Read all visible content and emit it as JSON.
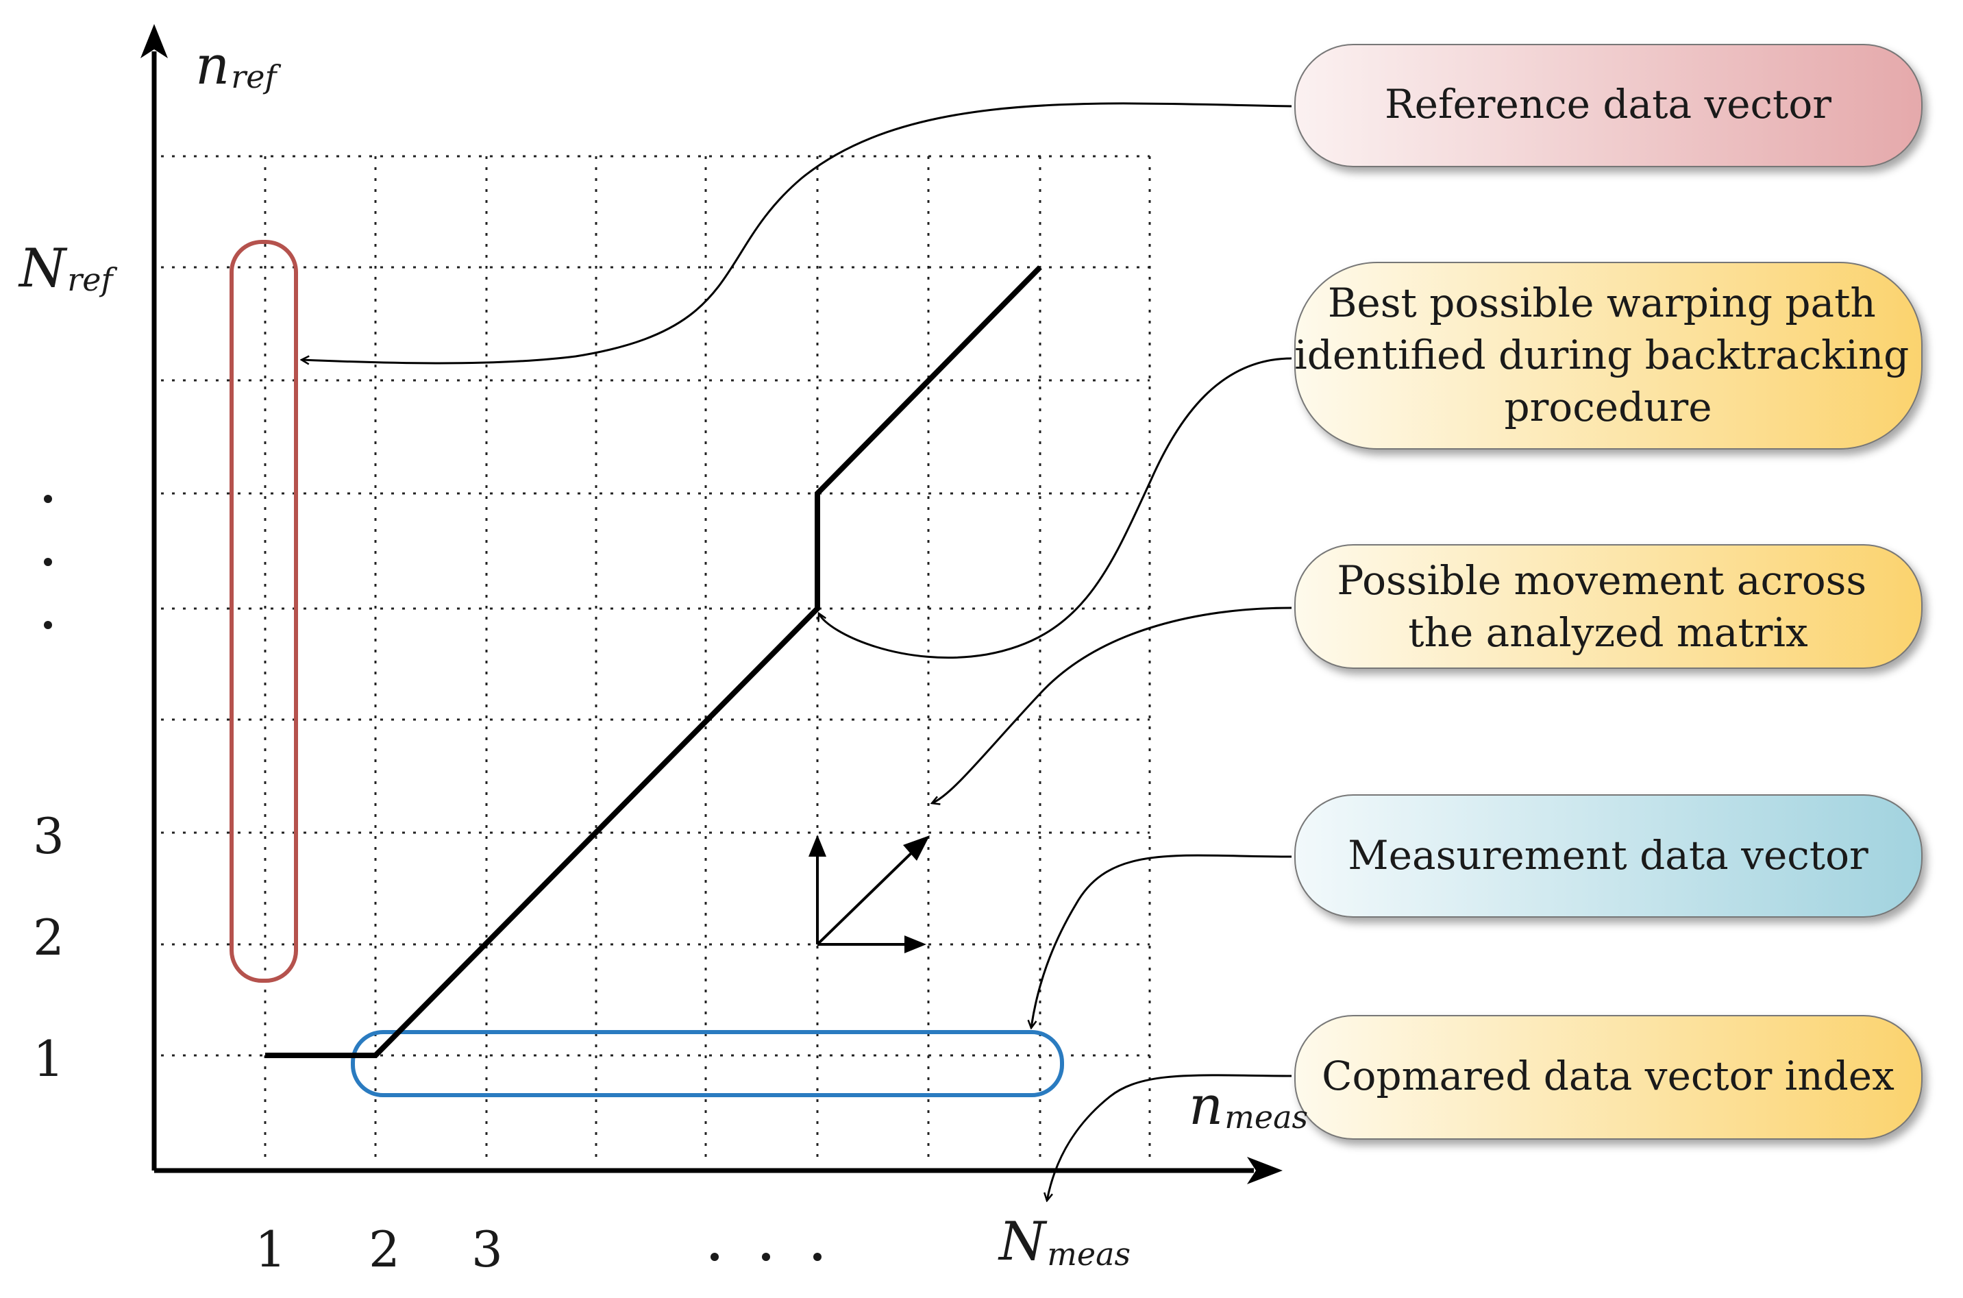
{
  "axes": {
    "y_label": {
      "main": "n",
      "sub": "ref"
    },
    "x_label": {
      "main": "n",
      "sub": "meas"
    },
    "y_end_label": {
      "main": "N",
      "sub": "ref"
    },
    "x_end_label": {
      "main": "N",
      "sub": "meas"
    },
    "y_ticks": [
      "1",
      "2",
      "3"
    ],
    "x_ticks": [
      "1",
      "2",
      "3"
    ],
    "y_ellipsis": "·\n·\n·",
    "x_ellipsis": ". . ."
  },
  "callouts": {
    "reference": {
      "lines": [
        "Reference data vector"
      ],
      "color": "#e7aeb0"
    },
    "warping": {
      "lines": [
        "Best possible warping path",
        "identified during backtracking",
        "procedure"
      ],
      "color": "#fbd77c"
    },
    "movement": {
      "lines": [
        "Possible movement across",
        "the analyzed matrix"
      ],
      "color": "#fbd77c"
    },
    "measurement": {
      "lines": [
        "Measurement data vector"
      ],
      "color": "#a9d6e2"
    },
    "compared": {
      "lines": [
        "Copmared data vector index"
      ],
      "color": "#fbd77c"
    }
  },
  "colors": {
    "reference_highlight": "#b5524d",
    "measurement_highlight": "#2a7bc0",
    "path": "#000000",
    "grid": "#222222"
  }
}
